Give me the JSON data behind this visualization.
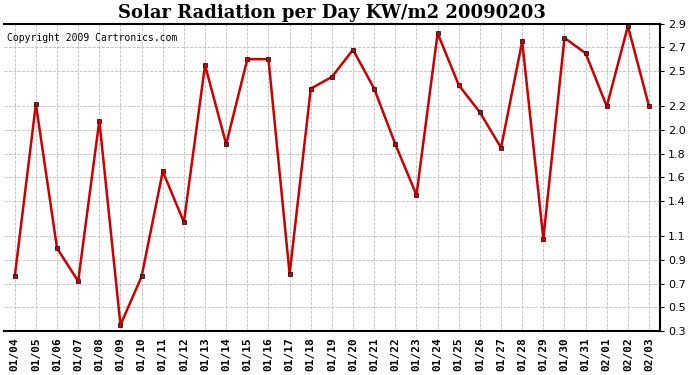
{
  "title": "Solar Radiation per Day KW/m2 20090203",
  "copyright": "Copyright 2009 Cartronics.com",
  "dates": [
    "01/04",
    "01/05",
    "01/06",
    "01/07",
    "01/08",
    "01/09",
    "01/10",
    "01/11",
    "01/12",
    "01/13",
    "01/14",
    "01/15",
    "01/16",
    "01/17",
    "01/18",
    "01/19",
    "01/20",
    "01/21",
    "01/22",
    "01/23",
    "01/24",
    "01/25",
    "01/26",
    "01/27",
    "01/28",
    "01/29",
    "01/30",
    "01/31",
    "02/01",
    "02/02",
    "02/03"
  ],
  "values": [
    0.76,
    2.22,
    1.0,
    0.72,
    2.08,
    0.35,
    0.76,
    1.65,
    1.22,
    2.55,
    1.88,
    2.6,
    2.6,
    0.78,
    2.35,
    2.45,
    2.68,
    2.35,
    1.88,
    1.45,
    2.82,
    2.38,
    2.15,
    1.85,
    2.75,
    1.08,
    2.78,
    2.65,
    2.2,
    2.88,
    2.2
  ],
  "line_color": "#cc0000",
  "marker": "s",
  "marker_size": 3,
  "line_width": 1.8,
  "ylim": [
    0.3,
    2.9
  ],
  "yticks": [
    0.3,
    0.5,
    0.7,
    0.9,
    1.1,
    1.4,
    1.6,
    1.8,
    2.0,
    2.2,
    2.5,
    2.7,
    2.9
  ],
  "grid_color": "#bbbbbb",
  "grid_style": "--",
  "background_color": "#ffffff",
  "title_fontsize": 13,
  "copyright_fontsize": 7,
  "tick_fontsize": 8,
  "border_color": "#000000"
}
